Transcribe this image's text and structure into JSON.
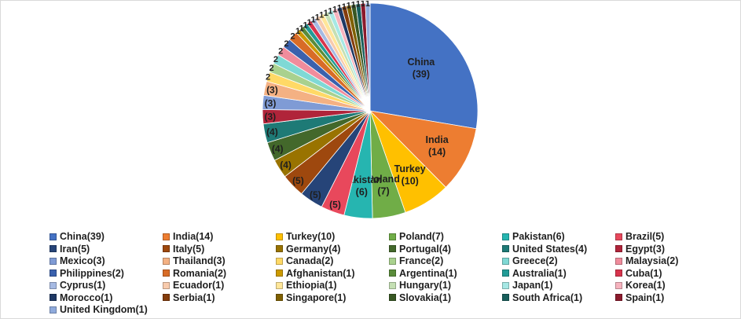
{
  "chart_data": {
    "type": "pie",
    "title": "",
    "legend_position": "bottom",
    "slices": [
      {
        "name": "China",
        "value": 39,
        "legend": "China(39)",
        "label": [
          "China",
          "(39)"
        ],
        "color": "#4472c4"
      },
      {
        "name": "India",
        "value": 14,
        "legend": "India(14)",
        "label": [
          "India",
          "(14)"
        ],
        "color": "#ed7d31"
      },
      {
        "name": "Turkey",
        "value": 10,
        "legend": "Turkey(10)",
        "label": [
          "Turkey",
          "(10)"
        ],
        "color": "#ffc000"
      },
      {
        "name": "Poland",
        "value": 7,
        "legend": "Poland(7)",
        "label": [
          "Poland",
          "(7)"
        ],
        "color": "#70ad47"
      },
      {
        "name": "Pakistan",
        "value": 6,
        "legend": "Pakistan(6)",
        "label": [
          "Pakistan",
          "(6)"
        ],
        "color": "#26b5b0"
      },
      {
        "name": "Brazil",
        "value": 5,
        "legend": "Brazil(5)",
        "label": [
          "(5)"
        ],
        "color": "#e8485c"
      },
      {
        "name": "Iran",
        "value": 5,
        "legend": "Iran(5)",
        "label": [
          "(5)"
        ],
        "color": "#264478"
      },
      {
        "name": "Italy",
        "value": 5,
        "legend": "Italy(5)",
        "label": [
          "(5)"
        ],
        "color": "#9e480e"
      },
      {
        "name": "Germany",
        "value": 4,
        "legend": "Germany(4)",
        "label": [
          "(4)"
        ],
        "color": "#997300"
      },
      {
        "name": "Portugal",
        "value": 4,
        "legend": "Portugal(4)",
        "label": [
          "(4)"
        ],
        "color": "#43682b"
      },
      {
        "name": "United States",
        "value": 4,
        "legend": "United States(4)",
        "label": [
          "(4)"
        ],
        "color": "#1e7a76"
      },
      {
        "name": "Egypt",
        "value": 3,
        "legend": "Egypt(3)",
        "label": [
          "(3)"
        ],
        "color": "#b0243a"
      },
      {
        "name": "Mexico",
        "value": 3,
        "legend": "Mexico(3)",
        "label": [
          "(3)"
        ],
        "color": "#7f9bd5"
      },
      {
        "name": "Thailand",
        "value": 3,
        "legend": "Thailand(3)",
        "label": [
          "(3)"
        ],
        "color": "#f4b183"
      },
      {
        "name": "Canada",
        "value": 2,
        "legend": "Canada(2)",
        "label": [
          "2"
        ],
        "color": "#ffd966"
      },
      {
        "name": "France",
        "value": 2,
        "legend": "France(2)",
        "label": [
          "2"
        ],
        "color": "#a9d18e"
      },
      {
        "name": "Greece",
        "value": 2,
        "legend": "Greece(2)",
        "label": [
          "2"
        ],
        "color": "#7fd9d5"
      },
      {
        "name": "Malaysia",
        "value": 2,
        "legend": "Malaysia(2)",
        "label": [
          "2"
        ],
        "color": "#f08c9c"
      },
      {
        "name": "Philippines",
        "value": 2,
        "legend": "Philippines(2)",
        "label": [
          "2"
        ],
        "color": "#3a61ad"
      },
      {
        "name": "Romania",
        "value": 2,
        "legend": "Romania(2)",
        "label": [
          "2"
        ],
        "color": "#d86c27"
      },
      {
        "name": "Afghanistan",
        "value": 1,
        "legend": "Afghanistan(1)",
        "label": [
          "1"
        ],
        "color": "#cc9a00"
      },
      {
        "name": "Argentina",
        "value": 1,
        "legend": "Argentina(1)",
        "label": [
          "1"
        ],
        "color": "#5a8c3a"
      },
      {
        "name": "Australia",
        "value": 1,
        "legend": "Australia(1)",
        "label": [
          "1"
        ],
        "color": "#229c97"
      },
      {
        "name": "Cuba",
        "value": 1,
        "legend": "Cuba(1)",
        "label": [
          "1"
        ],
        "color": "#d8344c"
      },
      {
        "name": "Cyprus",
        "value": 1,
        "legend": "Cyprus(1)",
        "label": [
          "1"
        ],
        "color": "#a6bae3"
      },
      {
        "name": "Ecuador",
        "value": 1,
        "legend": "Ecuador(1)",
        "label": [
          "1"
        ],
        "color": "#f8cbad"
      },
      {
        "name": "Ethiopia",
        "value": 1,
        "legend": "Ethiopia(1)",
        "label": [
          "1"
        ],
        "color": "#ffe699"
      },
      {
        "name": "Hungary",
        "value": 1,
        "legend": "Hungary(1)",
        "label": [
          "1"
        ],
        "color": "#c5e0b4"
      },
      {
        "name": "Japan",
        "value": 1,
        "legend": "Japan(1)",
        "label": [
          "1"
        ],
        "color": "#a6e8e5"
      },
      {
        "name": "Korea",
        "value": 1,
        "legend": "Korea(1)",
        "label": [
          "1"
        ],
        "color": "#f6b3be"
      },
      {
        "name": "Morocco",
        "value": 1,
        "legend": "Morocco(1)",
        "label": [
          "1"
        ],
        "color": "#1f3864"
      },
      {
        "name": "Serbia",
        "value": 1,
        "legend": "Serbia(1)",
        "label": [
          "1"
        ],
        "color": "#843c0c"
      },
      {
        "name": "Singapore",
        "value": 1,
        "legend": "Singapore(1)",
        "label": [
          "1"
        ],
        "color": "#7f6000"
      },
      {
        "name": "Slovakia",
        "value": 1,
        "legend": "Slovakia(1)",
        "label": [
          "1"
        ],
        "color": "#385723"
      },
      {
        "name": "South Africa",
        "value": 1,
        "legend": "South Africa(1)",
        "label": [
          "1"
        ],
        "color": "#185f5c"
      },
      {
        "name": "Spain",
        "value": 1,
        "legend": "Spain(1)",
        "label": [
          "1"
        ],
        "color": "#8b1a2c"
      },
      {
        "name": "United Kingdom",
        "value": 1,
        "legend": "United Kingdom(1)",
        "label": [
          "1"
        ],
        "color": "#8faadc"
      }
    ]
  }
}
